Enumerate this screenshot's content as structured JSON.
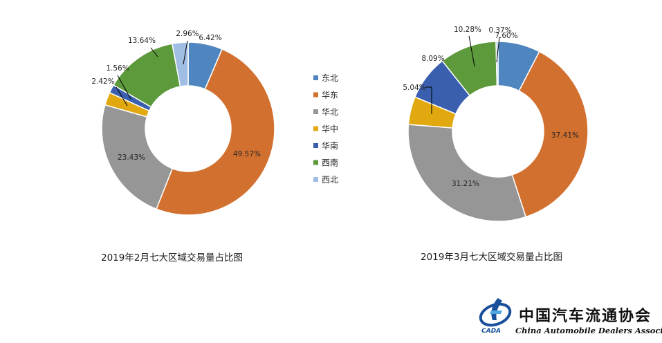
{
  "legend": [
    {
      "label": "东北",
      "color": "#4f86c0"
    },
    {
      "label": "华东",
      "color": "#d2702f"
    },
    {
      "label": "华北",
      "color": "#969696"
    },
    {
      "label": "华中",
      "color": "#e1a90f"
    },
    {
      "label": "华南",
      "color": "#3a5fae"
    },
    {
      "label": "西南",
      "color": "#5c9a3c"
    },
    {
      "label": "西北",
      "color": "#a0bde3"
    }
  ],
  "chart_data": [
    {
      "type": "pie",
      "subtype": "donut",
      "title": "2019年2月七大区域交易量占比图",
      "categories": [
        "东北",
        "华东",
        "华北",
        "华中",
        "华南",
        "西南",
        "西北"
      ],
      "values": [
        6.42,
        49.57,
        23.43,
        2.42,
        1.56,
        13.64,
        2.96
      ],
      "labels": [
        "6.42%",
        "49.57%",
        "23.43%",
        "2.42%",
        "1.56%",
        "13.64%",
        "2.96%"
      ],
      "legend_position": "right"
    },
    {
      "type": "pie",
      "subtype": "donut",
      "title": "2019年3月七大区域交易量占比图",
      "categories": [
        "东北",
        "华东",
        "华北",
        "华中",
        "华南",
        "西南",
        "西北"
      ],
      "values": [
        7.6,
        37.41,
        31.21,
        5.04,
        8.09,
        10.28,
        0.37
      ],
      "labels": [
        "7.60%",
        "37.41%",
        "31.21%",
        "5.04%",
        "8.09%",
        "10.28%",
        "0.37%"
      ],
      "legend_position": "none"
    }
  ],
  "logo": {
    "name_cn": "中国汽车流通协会",
    "name_en": "China Automobile Dealers Association",
    "abbr": "CADA"
  }
}
